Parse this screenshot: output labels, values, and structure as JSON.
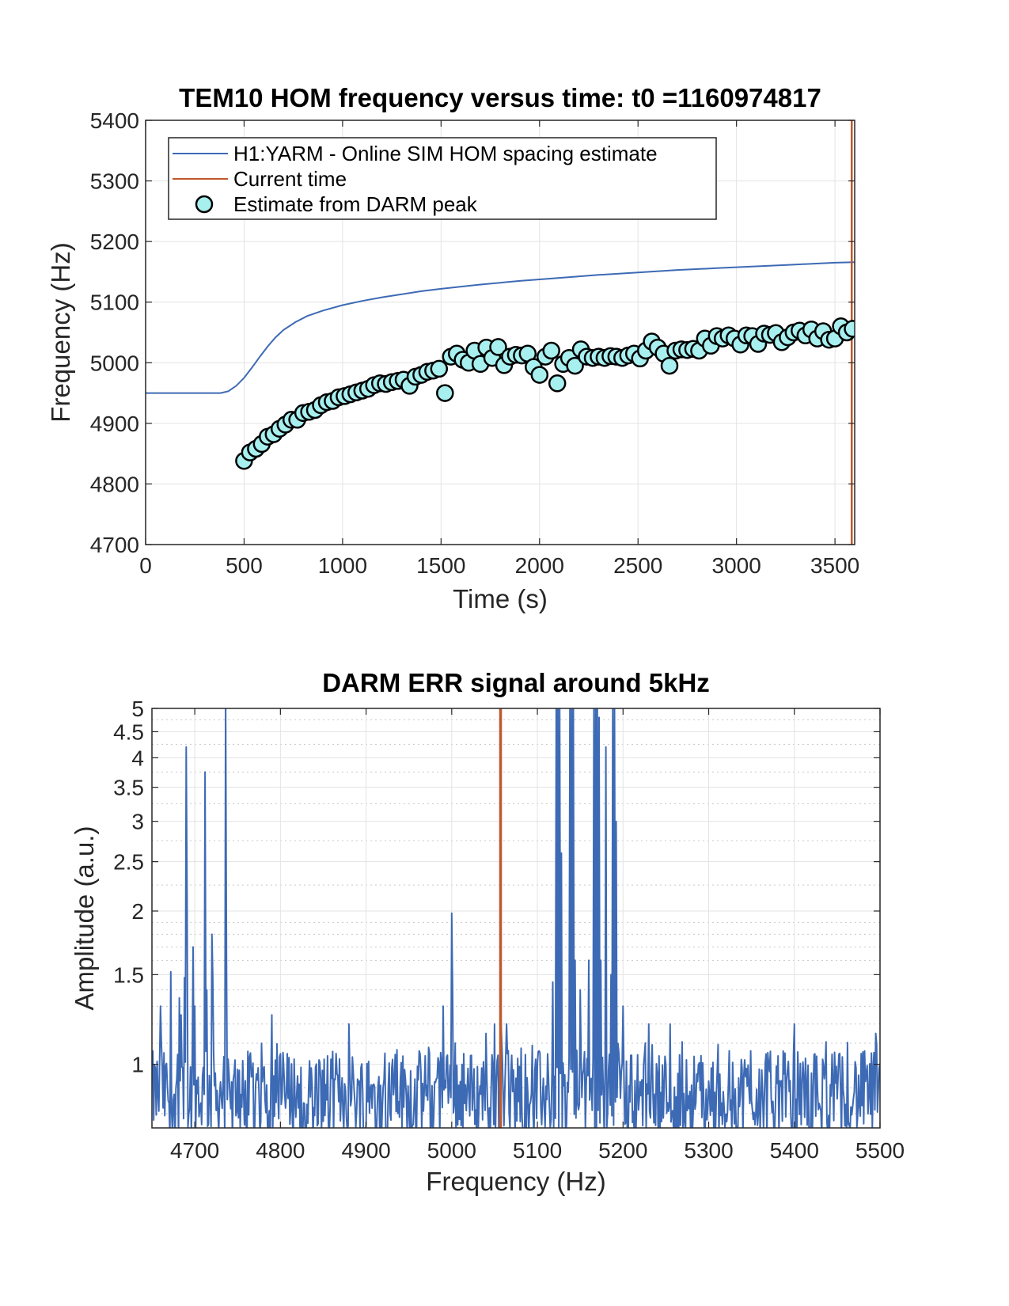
{
  "chart_data": [
    {
      "type": "line+scatter",
      "title": "TEM10 HOM frequency versus time: t0 =1160974817",
      "xlabel": "Time (s)",
      "ylabel": "Frequency (Hz)",
      "xlim": [
        0,
        3600
      ],
      "ylim": [
        4700,
        5400
      ],
      "xticks": [
        0,
        500,
        1000,
        1500,
        2000,
        2500,
        3000,
        3500
      ],
      "yticks": [
        4700,
        4800,
        4900,
        5000,
        5100,
        5200,
        5300,
        5400
      ],
      "grid": true,
      "legend_position": "top-left",
      "series": [
        {
          "name": "H1:YARM - Online SIM HOM spacing estimate",
          "kind": "line",
          "color": "#3d6ab5",
          "x": [
            0,
            380,
            420,
            460,
            500,
            540,
            580,
            620,
            660,
            700,
            760,
            820,
            900,
            1000,
            1100,
            1200,
            1300,
            1400,
            1500,
            1700,
            1900,
            2100,
            2300,
            2500,
            2700,
            2900,
            3100,
            3300,
            3500,
            3600
          ],
          "y": [
            4950,
            4950,
            4953,
            4962,
            4975,
            4992,
            5010,
            5027,
            5042,
            5054,
            5067,
            5077,
            5086,
            5095,
            5102,
            5108,
            5113,
            5118,
            5122,
            5129,
            5135,
            5140,
            5145,
            5149,
            5153,
            5156,
            5159,
            5162,
            5165,
            5166
          ]
        },
        {
          "name": "Current time",
          "kind": "vline",
          "color": "#c0582b",
          "x": 3585
        },
        {
          "name": "Estimate from DARM peak",
          "kind": "scatter",
          "color": "#a8f0f0",
          "edge_color": "#000000",
          "x": [
            500,
            530,
            560,
            590,
            620,
            650,
            680,
            710,
            740,
            770,
            800,
            830,
            860,
            890,
            920,
            950,
            980,
            1010,
            1040,
            1070,
            1100,
            1130,
            1160,
            1190,
            1220,
            1250,
            1280,
            1310,
            1340,
            1370,
            1400,
            1430,
            1460,
            1490,
            1520,
            1550,
            1580,
            1610,
            1640,
            1670,
            1700,
            1730,
            1760,
            1790,
            1820,
            1850,
            1880,
            1910,
            1940,
            1970,
            2000,
            2030,
            2060,
            2090,
            2120,
            2150,
            2180,
            2210,
            2240,
            2270,
            2300,
            2330,
            2360,
            2390,
            2420,
            2450,
            2480,
            2510,
            2540,
            2570,
            2600,
            2630,
            2660,
            2690,
            2720,
            2750,
            2780,
            2810,
            2840,
            2870,
            2900,
            2930,
            2960,
            2990,
            3020,
            3050,
            3080,
            3110,
            3140,
            3170,
            3200,
            3230,
            3260,
            3290,
            3320,
            3350,
            3380,
            3410,
            3440,
            3470,
            3500,
            3530,
            3560,
            3590
          ],
          "y": [
            4838,
            4852,
            4858,
            4866,
            4878,
            4882,
            4891,
            4898,
            4906,
            4906,
            4917,
            4919,
            4922,
            4930,
            4935,
            4937,
            4943,
            4945,
            4948,
            4951,
            4954,
            4957,
            4963,
            4966,
            4965,
            4968,
            4970,
            4972,
            4962,
            4977,
            4980,
            4985,
            4987,
            4990,
            4950,
            5010,
            5015,
            5005,
            5000,
            5020,
            4998,
            5025,
            5008,
            5026,
            4996,
            5010,
            5013,
            5012,
            5015,
            4993,
            4980,
            5010,
            5020,
            4966,
            4998,
            5008,
            4995,
            5022,
            5010,
            5008,
            5010,
            5008,
            5011,
            5010,
            5008,
            5012,
            5015,
            5007,
            5020,
            5035,
            5025,
            5015,
            4995,
            5020,
            5022,
            5021,
            5023,
            5020,
            5040,
            5028,
            5044,
            5040,
            5045,
            5040,
            5030,
            5045,
            5044,
            5031,
            5048,
            5046,
            5049,
            5034,
            5042,
            5050,
            5053,
            5045,
            5055,
            5040,
            5052,
            5038,
            5040,
            5060,
            5050,
            5056
          ]
        }
      ]
    },
    {
      "type": "line",
      "title": "DARM ERR signal around 5kHz",
      "xlabel": "Frequency (Hz)",
      "ylabel": "Amplitude (a.u.)",
      "xlim": [
        4650,
        5500
      ],
      "ylim": [
        0.75,
        5
      ],
      "yscale": "log",
      "xticks": [
        4700,
        4800,
        4900,
        5000,
        5100,
        5200,
        5300,
        5400,
        5500
      ],
      "yticks": [
        1,
        1.5,
        2,
        2.5,
        3,
        3.5,
        4,
        4.5,
        5
      ],
      "ytick_labels": [
        "1",
        "1.5",
        "2",
        "2.5",
        "3",
        "3.5",
        "4",
        "4.5",
        "5"
      ],
      "grid": true,
      "minor_grid": true,
      "noise_baseline": 0.88,
      "series": [
        {
          "name": "",
          "kind": "line",
          "color": "#3d6ab5",
          "peaks_x": [
            4660,
            4661,
            4672,
            4682,
            4684,
            4688,
            4690,
            4691,
            4698,
            4700,
            4712,
            4714,
            4720,
            4721,
            4736,
            4737,
            4790,
            4880,
            4990,
            5000,
            5001,
            5040,
            5050,
            5057,
            5058,
            5064,
            5118,
            5122,
            5124,
            5126,
            5128,
            5138,
            5140,
            5142,
            5144,
            5150,
            5160,
            5166,
            5168,
            5170,
            5172,
            5174,
            5180,
            5186,
            5188,
            5190,
            5192,
            5200,
            5230,
            5255,
            5400,
            5495
          ],
          "peaks_y": [
            1.3,
            1.1,
            1.52,
            1.35,
            1.25,
            1.48,
            4.2,
            2.1,
            1.7,
            1.3,
            3.75,
            1.4,
            1.8,
            1.5,
            5.2,
            1.6,
            1.25,
            1.2,
            1.3,
            1.98,
            1.4,
            1.15,
            1.2,
            1.3,
            1.15,
            1.2,
            1.45,
            5.2,
            5.2,
            5.2,
            2.6,
            5.2,
            5.2,
            5.2,
            1.6,
            1.4,
            1.6,
            5.2,
            5.2,
            5.2,
            4.8,
            1.6,
            4.2,
            1.5,
            5.2,
            5.2,
            3.0,
            1.3,
            1.2,
            1.2,
            1.2,
            1.15
          ]
        },
        {
          "name": "",
          "kind": "vline",
          "color": "#c0582b",
          "x": 5057
        }
      ]
    }
  ]
}
